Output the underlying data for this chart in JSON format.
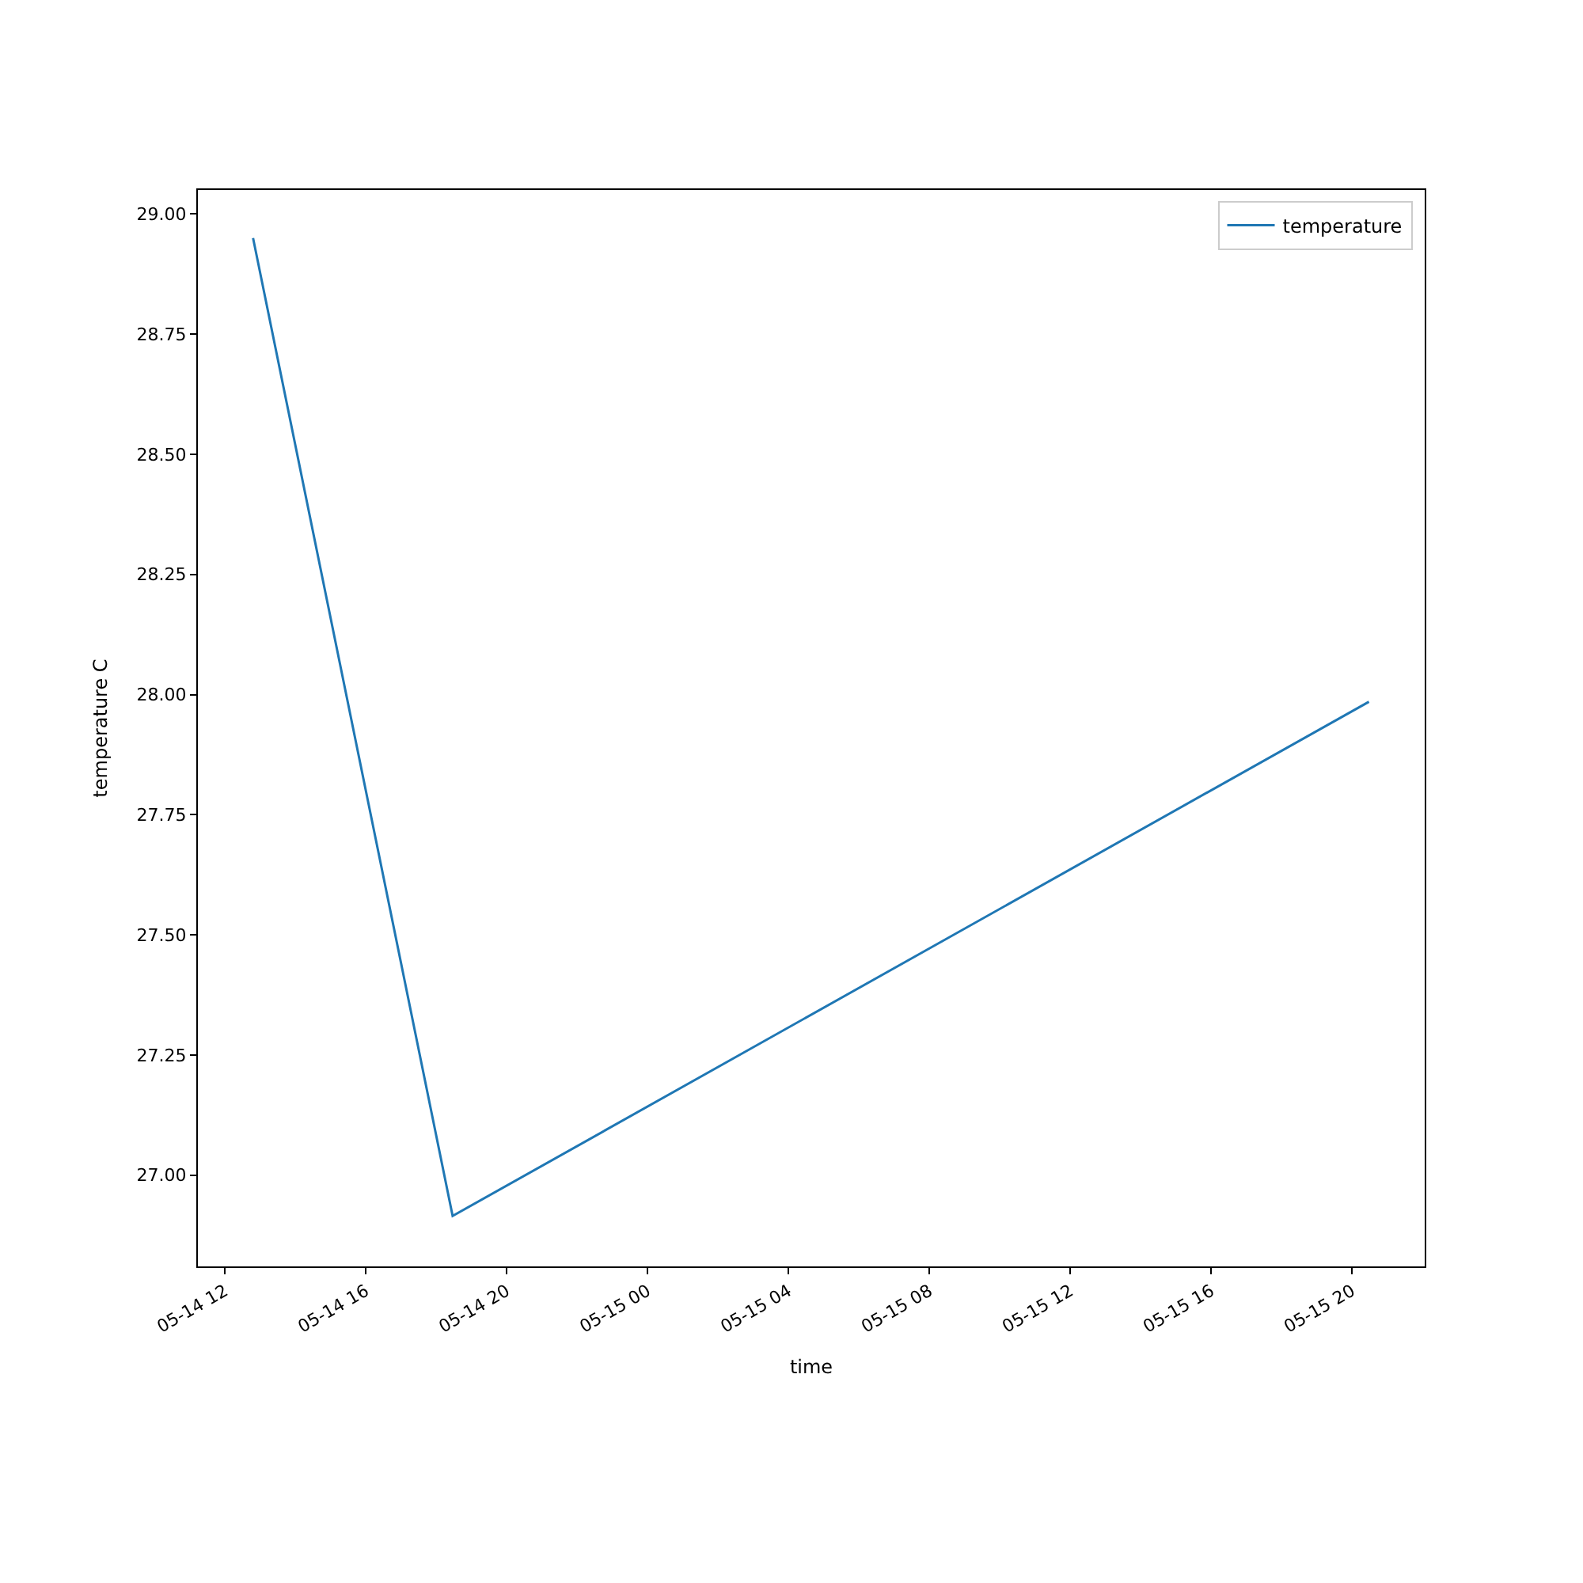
{
  "chart_data": {
    "type": "line",
    "xlabel": "time",
    "ylabel": "temperature C",
    "x": [
      "--05-14T12:48",
      "--05-14T18:28",
      "--05-15T20:29"
    ],
    "series": [
      {
        "name": "temperature",
        "color": "#1f77b4",
        "values": [
          28.95,
          26.915,
          27.985
        ]
      }
    ],
    "xlim": [
      "--05-14T11:14",
      "--05-15T22:04"
    ],
    "xticks": [
      {
        "value": "--05-14T12:00",
        "label": "05-14 12"
      },
      {
        "value": "--05-14T16:00",
        "label": "05-14 16"
      },
      {
        "value": "--05-14T20:00",
        "label": "05-14 20"
      },
      {
        "value": "--05-15T00:00",
        "label": "05-15 00"
      },
      {
        "value": "--05-15T04:00",
        "label": "05-15 04"
      },
      {
        "value": "--05-15T08:00",
        "label": "05-15 08"
      },
      {
        "value": "--05-15T12:00",
        "label": "05-15 12"
      },
      {
        "value": "--05-15T16:00",
        "label": "05-15 16"
      },
      {
        "value": "--05-15T20:00",
        "label": "05-15 20"
      }
    ],
    "ylim": [
      26.81,
      29.05
    ],
    "yticks": [
      {
        "value": 27,
        "label": "27.00"
      },
      {
        "value": 27.25,
        "label": "27.25"
      },
      {
        "value": 27.5,
        "label": "27.50"
      },
      {
        "value": 27.75,
        "label": "27.75"
      },
      {
        "value": 28,
        "label": "28.00"
      },
      {
        "value": 28.25,
        "label": "28.25"
      },
      {
        "value": 28.5,
        "label": "28.50"
      },
      {
        "value": 28.75,
        "label": "28.75"
      },
      {
        "value": 29,
        "label": "29.00"
      }
    ],
    "legend": "top right",
    "marker": "none",
    "line_style": "solid"
  }
}
